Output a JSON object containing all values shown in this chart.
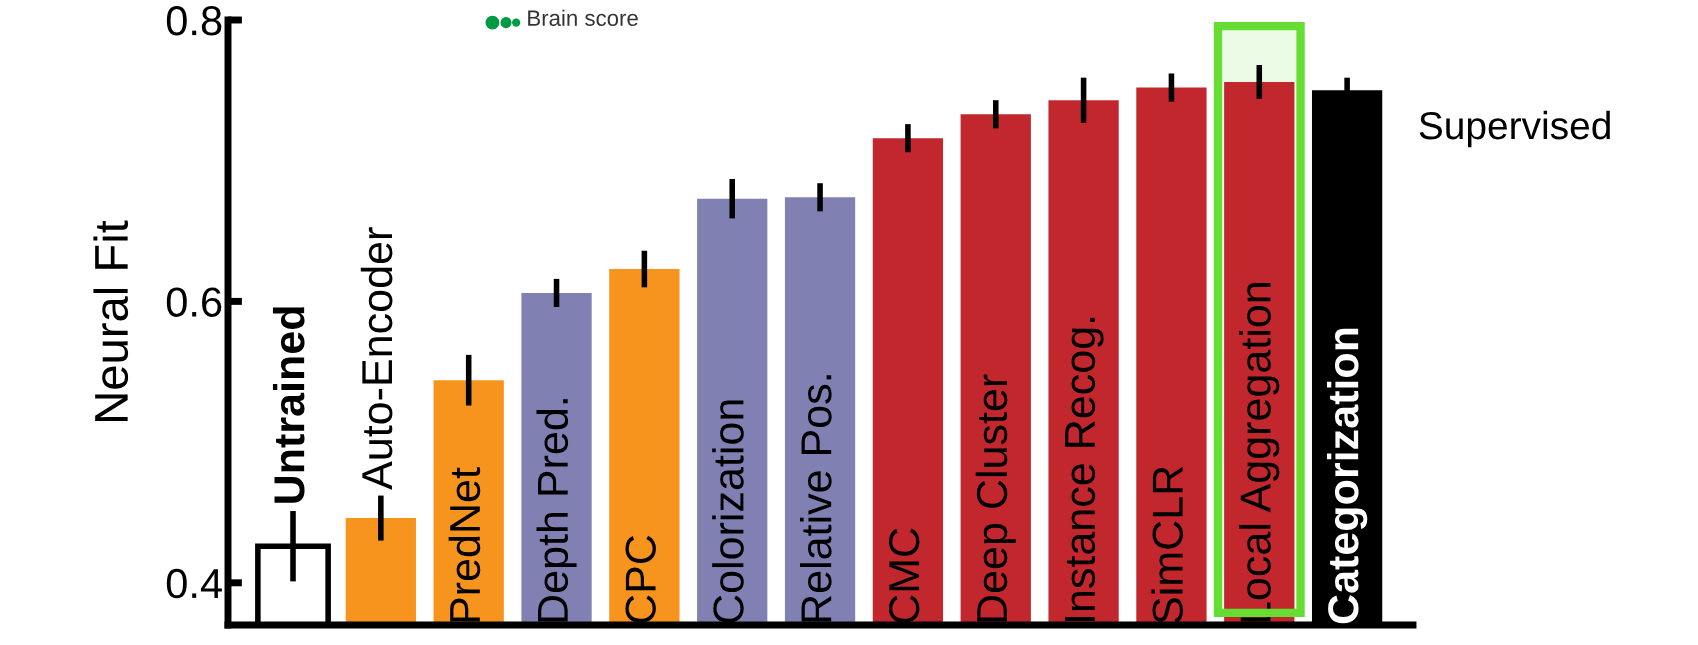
{
  "chart_data": {
    "type": "bar",
    "ylabel": "Neural Fit",
    "categories": [
      "Untrained",
      "Auto-Encoder",
      "PredNet",
      "Depth Pred.",
      "CPC",
      "Colorization",
      "Relative Pos.",
      "CMC",
      "Deep Cluster",
      "Instance Recog.",
      "SimCLR",
      "Local Aggregation",
      "Categorization"
    ],
    "values": [
      0.426,
      0.446,
      0.544,
      0.606,
      0.623,
      0.673,
      0.674,
      0.716,
      0.733,
      0.743,
      0.752,
      0.756,
      0.75
    ],
    "errors": [
      0.025,
      0.016,
      0.018,
      0.01,
      0.013,
      0.014,
      0.01,
      0.01,
      0.01,
      0.016,
      0.01,
      0.012,
      0.009
    ],
    "colors": [
      "#ffffff",
      "#f7941d",
      "#f7941d",
      "#8080b3",
      "#f7941d",
      "#8080b3",
      "#8080b3",
      "#c1272d",
      "#c1272d",
      "#c1272d",
      "#c1272d",
      "#c1272d",
      "#000000"
    ],
    "ylim": [
      0.37,
      0.8
    ],
    "yticks": [
      0.4,
      0.6,
      0.8
    ],
    "bands": [
      {
        "axis": "x",
        "from": "Local Aggregation",
        "to": "Local Aggregation",
        "color": "#66dd33"
      }
    ],
    "annotations": [
      "Supervised",
      "Brain score"
    ],
    "grid": false,
    "legend": false
  }
}
